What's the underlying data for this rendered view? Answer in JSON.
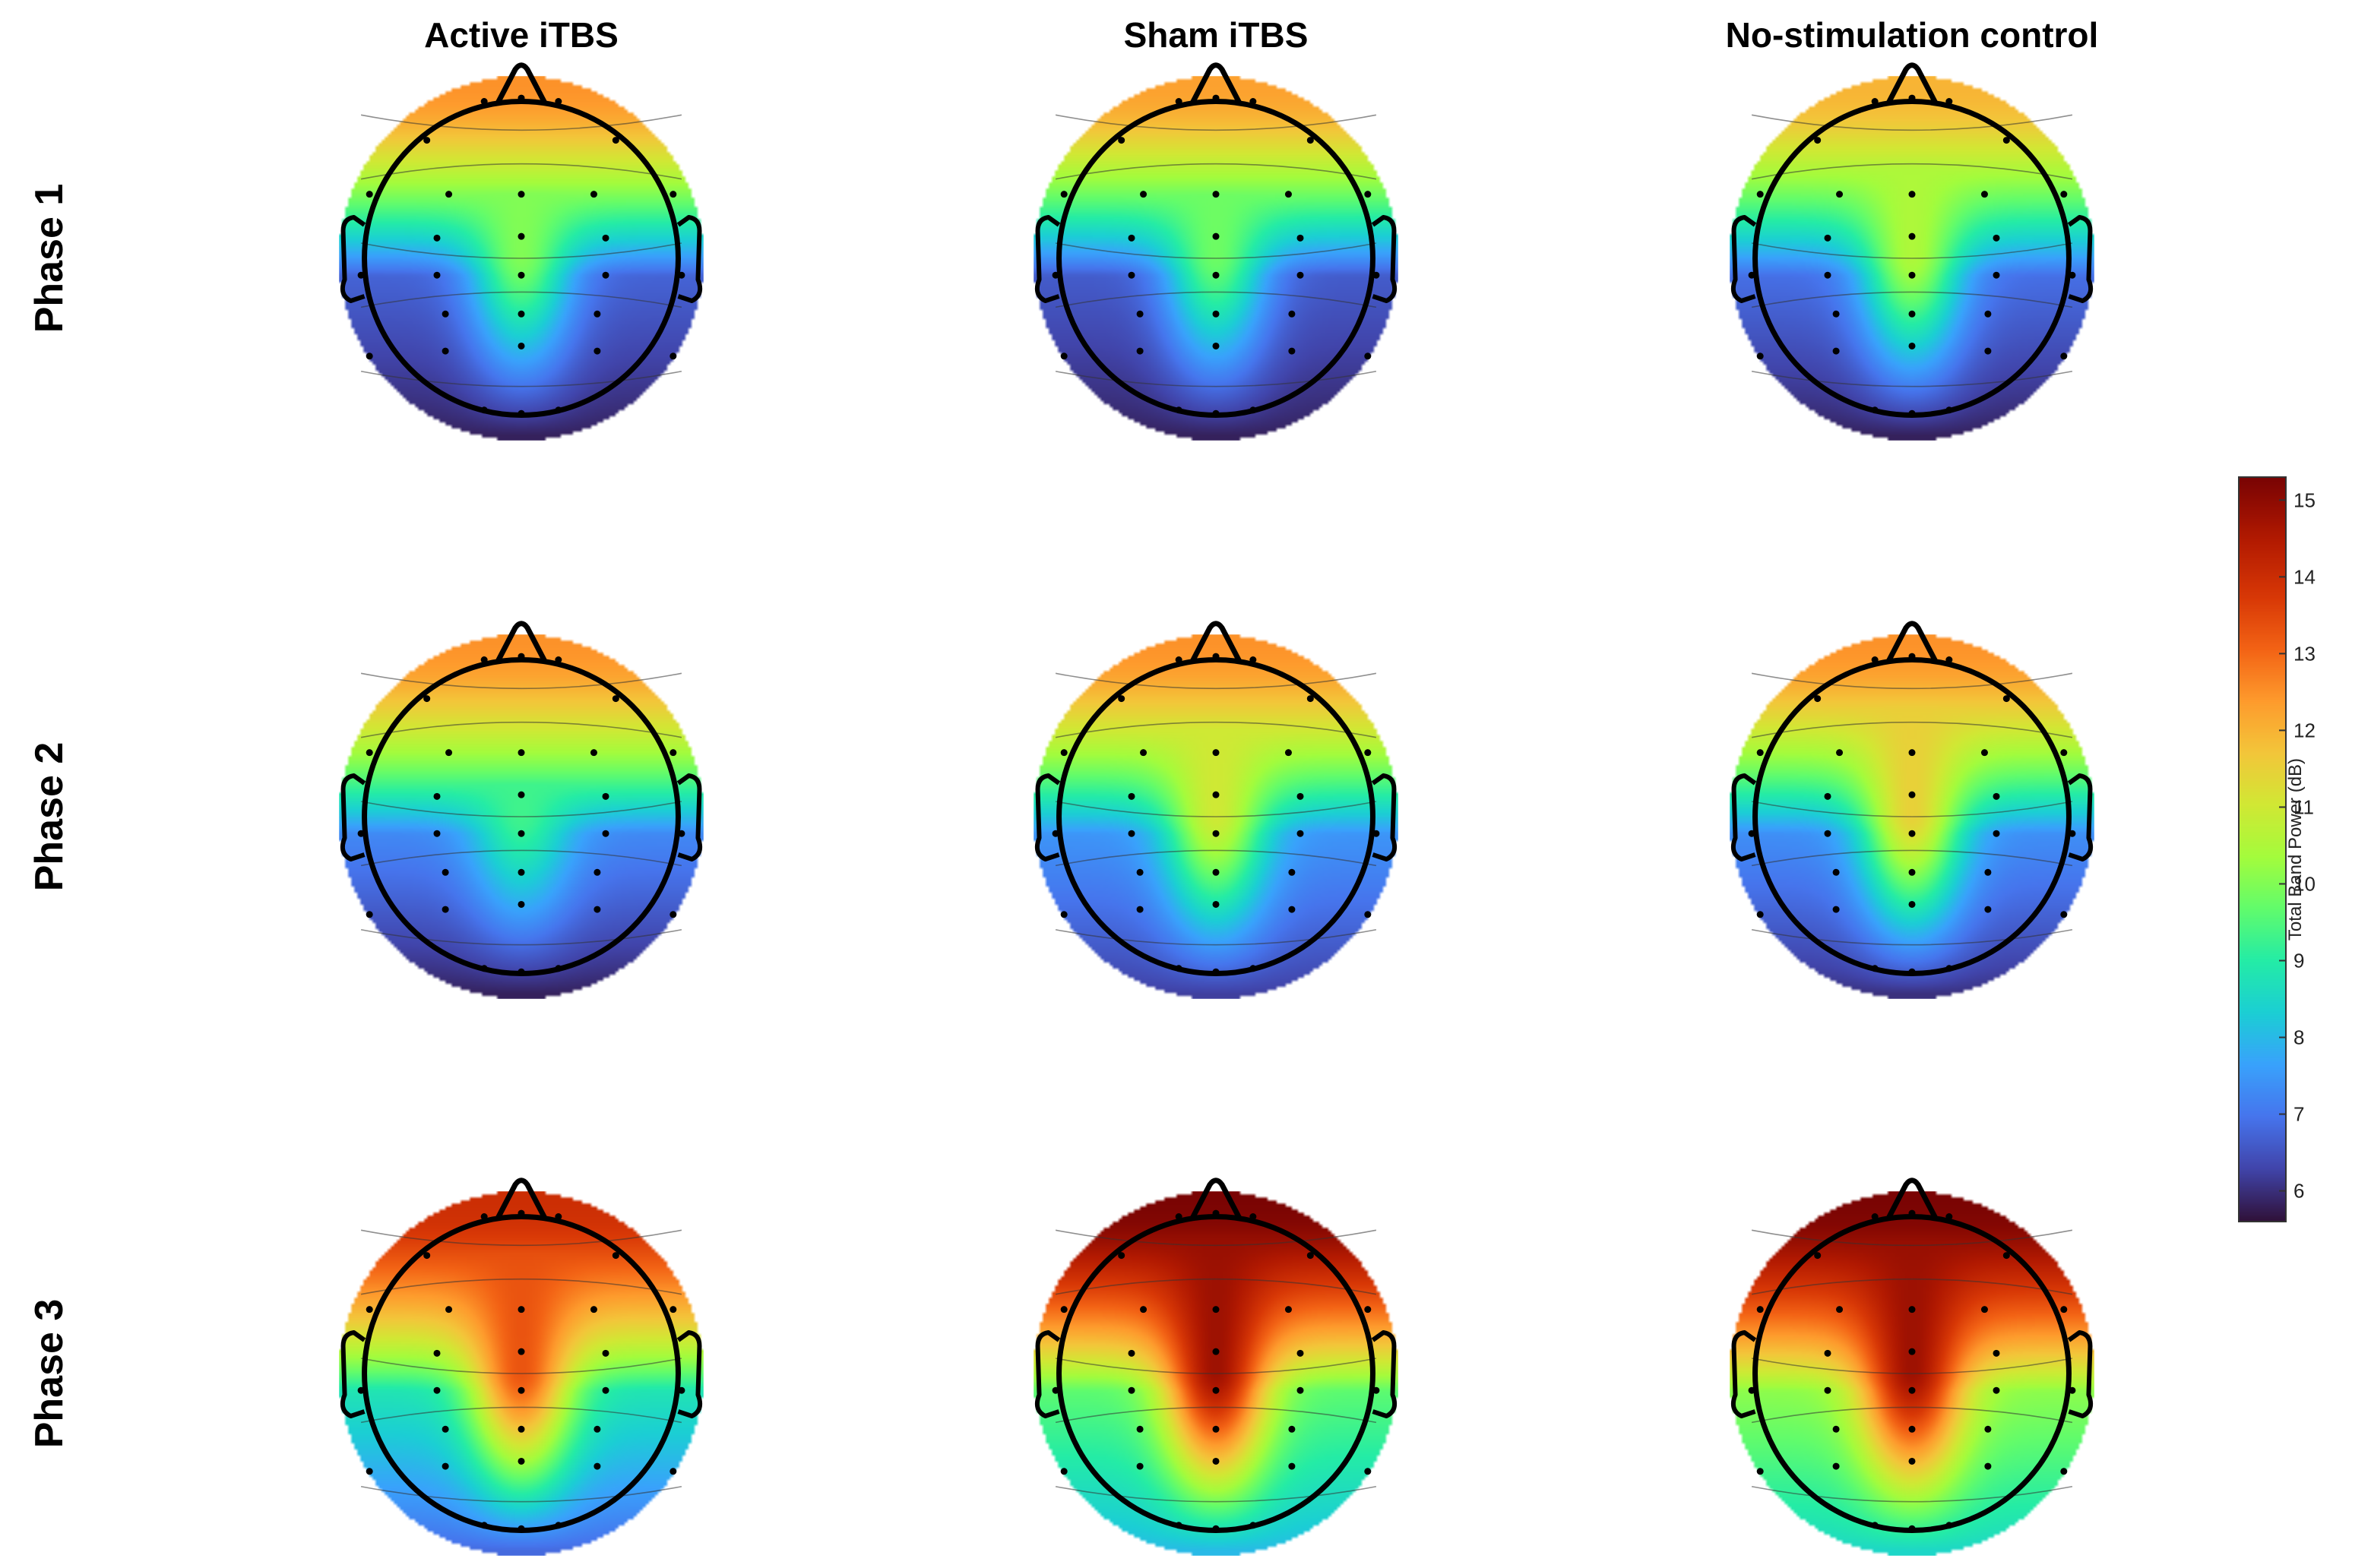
{
  "chart_data": {
    "type": "heatmap",
    "subtype": "eeg-scalp-topography-grid",
    "column_titles": [
      "Active iTBS",
      "Sham iTBS",
      "No-stimulation control"
    ],
    "row_labels": [
      "Phase 1",
      "Phase 2",
      "Phase 3"
    ],
    "colorbar": {
      "label": "Total Band Power (dB)",
      "range": [
        5.6,
        15.3
      ],
      "ticks": [
        6,
        7,
        8,
        9,
        10,
        11,
        12,
        13,
        14,
        15
      ],
      "colormap": "turbo"
    },
    "electrodes": [
      [
        -0.22,
        -0.93
      ],
      [
        0.0,
        -0.95
      ],
      [
        0.22,
        -0.93
      ],
      [
        -0.56,
        -0.7
      ],
      [
        0.56,
        -0.7
      ],
      [
        -0.9,
        -0.38
      ],
      [
        -0.43,
        -0.38
      ],
      [
        0.0,
        -0.38
      ],
      [
        0.43,
        -0.38
      ],
      [
        0.9,
        -0.38
      ],
      [
        -0.5,
        -0.12
      ],
      [
        0.0,
        -0.13
      ],
      [
        0.5,
        -0.12
      ],
      [
        -0.95,
        0.1
      ],
      [
        -0.5,
        0.1
      ],
      [
        0.0,
        0.1
      ],
      [
        0.5,
        0.1
      ],
      [
        0.95,
        0.1
      ],
      [
        -0.45,
        0.33
      ],
      [
        0.0,
        0.33
      ],
      [
        0.45,
        0.33
      ],
      [
        -0.9,
        0.58
      ],
      [
        -0.45,
        0.55
      ],
      [
        0.0,
        0.52
      ],
      [
        0.45,
        0.55
      ],
      [
        0.9,
        0.58
      ],
      [
        -0.22,
        0.9
      ],
      [
        0.0,
        0.92
      ],
      [
        0.22,
        0.9
      ]
    ],
    "panels": [
      {
        "condition": "Active iTBS",
        "phase": "Phase 1",
        "frontal_peak_db": 12.5,
        "midline_db": 10.0,
        "lateral_db": 7.5,
        "posterior_db": 5.8
      },
      {
        "condition": "Sham iTBS",
        "phase": "Phase 1",
        "frontal_peak_db": 12.3,
        "midline_db": 9.8,
        "lateral_db": 7.3,
        "posterior_db": 5.8
      },
      {
        "condition": "No-stimulation control",
        "phase": "Phase 1",
        "frontal_peak_db": 12.0,
        "midline_db": 10.5,
        "lateral_db": 7.8,
        "posterior_db": 5.8
      },
      {
        "condition": "Active iTBS",
        "phase": "Phase 2",
        "frontal_peak_db": 12.5,
        "midline_db": 9.3,
        "lateral_db": 8.5,
        "posterior_db": 5.8
      },
      {
        "condition": "Sham iTBS",
        "phase": "Phase 2",
        "frontal_peak_db": 12.5,
        "midline_db": 11.0,
        "lateral_db": 8.5,
        "posterior_db": 6.2
      },
      {
        "condition": "No-stimulation control",
        "phase": "Phase 2",
        "frontal_peak_db": 12.5,
        "midline_db": 11.5,
        "lateral_db": 8.5,
        "posterior_db": 6.0
      },
      {
        "condition": "Active iTBS",
        "phase": "Phase 3",
        "frontal_peak_db": 14.0,
        "midline_db": 13.3,
        "lateral_db": 10.5,
        "posterior_db": 6.8
      },
      {
        "condition": "Sham iTBS",
        "phase": "Phase 3",
        "frontal_peak_db": 15.3,
        "midline_db": 14.8,
        "lateral_db": 11.0,
        "posterior_db": 8.0
      },
      {
        "condition": "No-stimulation control",
        "phase": "Phase 3",
        "frontal_peak_db": 15.3,
        "midline_db": 14.8,
        "lateral_db": 11.5,
        "posterior_db": 8.5
      }
    ]
  }
}
